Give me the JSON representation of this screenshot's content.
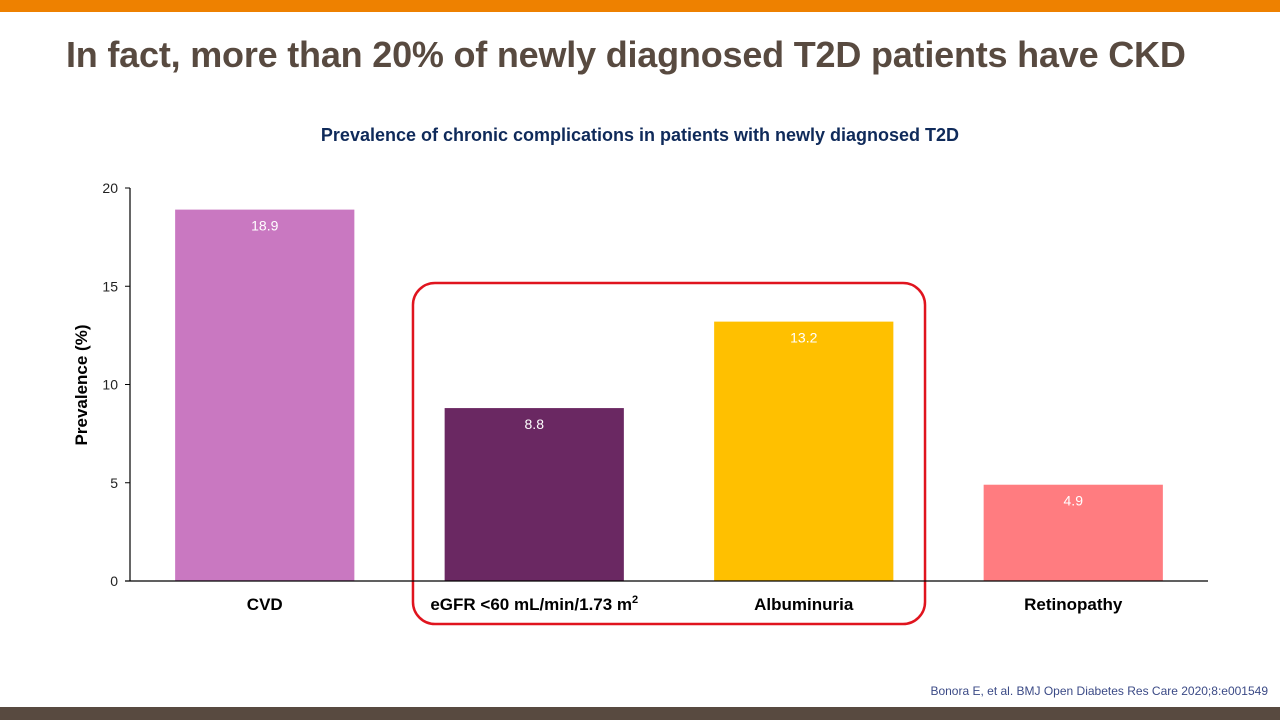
{
  "slide": {
    "title": "In fact, more than 20% of newly diagnosed T2D patients have CKD",
    "reference": "Bonora E,  et al. BMJ  Open Diabetes Res Care 2020;8:e001549",
    "colors": {
      "top_bar": "#EE8100",
      "bottom_bar": "#584A40",
      "highlight_box": "#E0141E"
    }
  },
  "chart_data": {
    "type": "bar",
    "title": "Prevalence of chronic complications in patients with newly diagnosed T2D",
    "xlabel": "",
    "ylabel": "Prevalence (%)",
    "ylim": [
      0,
      20
    ],
    "yticks": [
      0,
      5,
      10,
      15,
      20
    ],
    "grid": false,
    "categories": [
      "CVD",
      "eGFR <60 mL/min/1.73 m",
      "Albuminuria",
      "Retinopathy"
    ],
    "category_superscripts": [
      "",
      "2",
      "",
      ""
    ],
    "values": [
      18.9,
      8.8,
      13.2,
      4.9
    ],
    "data_labels": [
      "18.9",
      "8.8",
      "13.2",
      "4.9"
    ],
    "colors": [
      "#C978C1",
      "#6A2862",
      "#FFC000",
      "#FF7C80"
    ],
    "highlighted_categories": [
      "eGFR <60 mL/min/1.73 m",
      "Albuminuria"
    ]
  }
}
